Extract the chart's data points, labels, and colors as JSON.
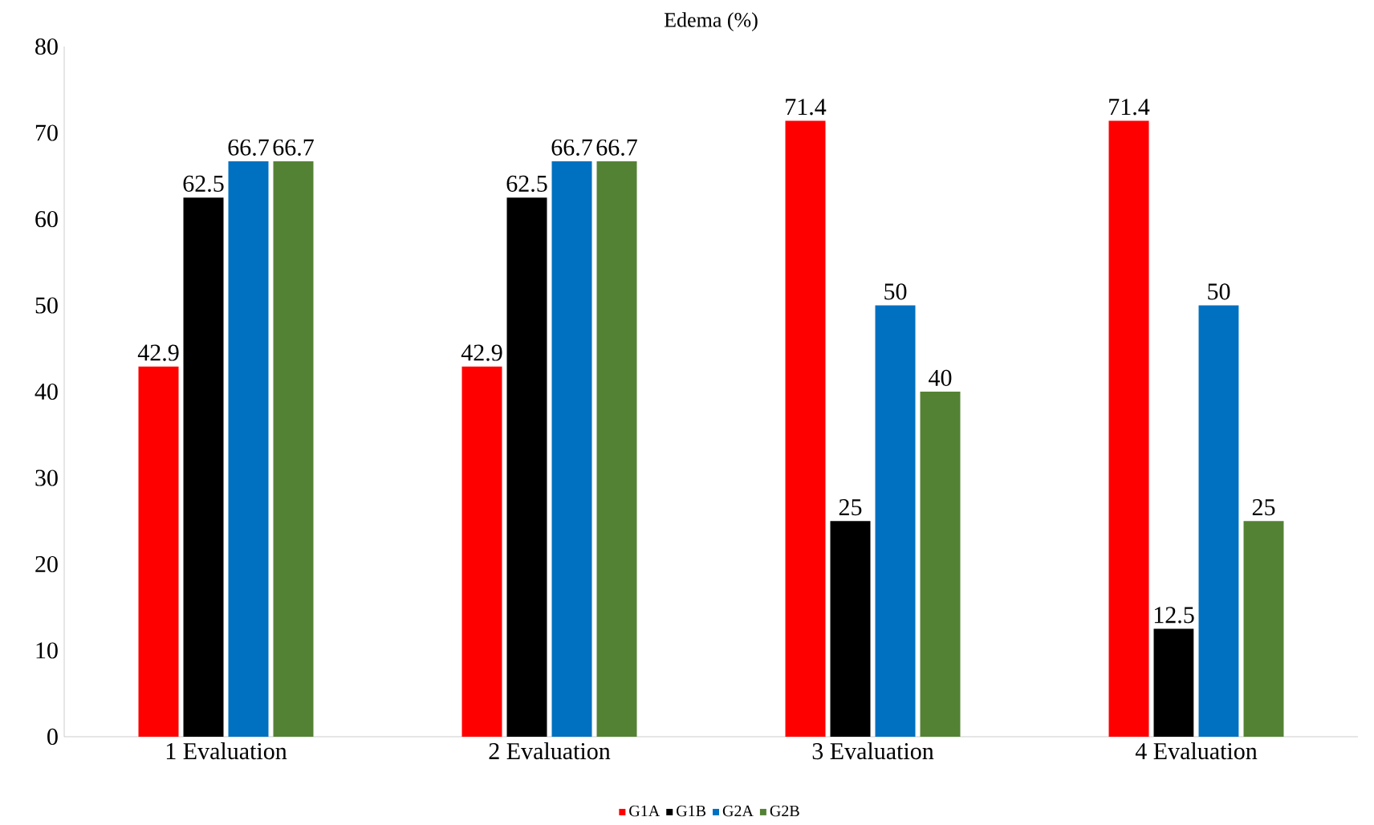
{
  "chart_data": {
    "type": "bar",
    "title": "Edema (%)",
    "categories": [
      "1 Evaluation",
      "2 Evaluation",
      "3 Evaluation",
      "4 Evaluation"
    ],
    "series": [
      {
        "name": "G1A",
        "color": "#ff0000",
        "values": [
          42.9,
          42.9,
          71.4,
          71.4
        ]
      },
      {
        "name": "G1B",
        "color": "#000000",
        "values": [
          62.5,
          62.5,
          25,
          12.5
        ]
      },
      {
        "name": "G2A",
        "color": "#0070c0",
        "values": [
          66.7,
          66.7,
          50,
          50
        ]
      },
      {
        "name": "G2B",
        "color": "#548235",
        "values": [
          66.7,
          66.7,
          40,
          25
        ]
      }
    ],
    "ylim": [
      0,
      80
    ],
    "yticks": [
      0,
      10,
      20,
      30,
      40,
      50,
      60,
      70,
      80
    ],
    "data_labels": true,
    "legend": "bottom"
  }
}
